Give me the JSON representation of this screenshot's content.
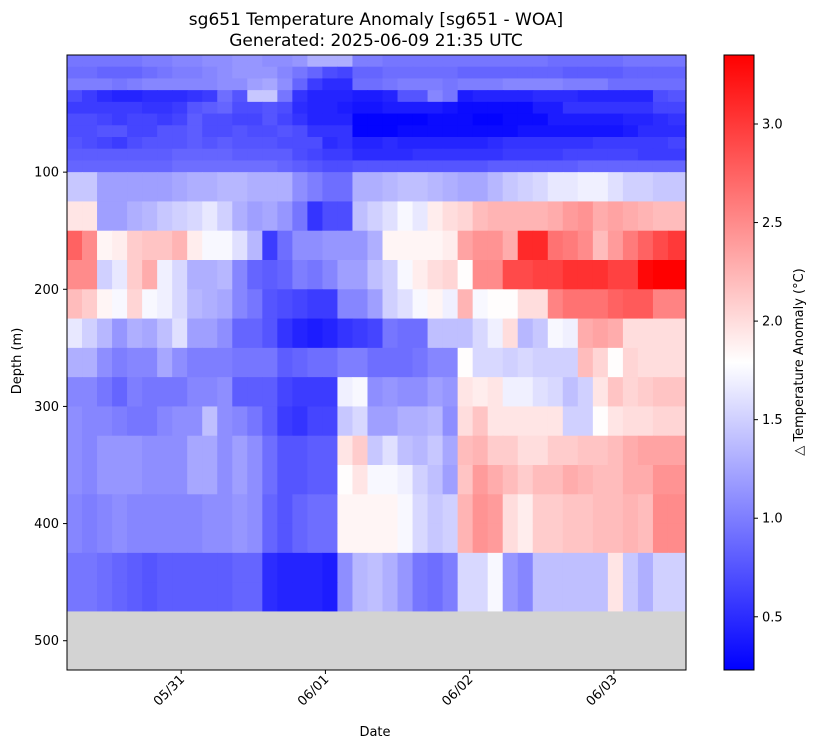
{
  "chart_data": {
    "type": "heatmap",
    "title": "sg651 Temperature Anomaly [sg651 - WOA]",
    "subtitle": "Generated: 2025-06-09 21:35 UTC",
    "xlabel": "Date",
    "ylabel": "Depth (m)",
    "colorbar_label": "△ Temperature Anomaly (°C)",
    "colormap": "bwr",
    "color_range": [
      0.23,
      3.35
    ],
    "colorbar_ticks": [
      0.5,
      1.0,
      1.5,
      2.0,
      2.5,
      3.0
    ],
    "colorbar_tick_labels": [
      "0.5",
      "1.0",
      "1.5",
      "2.0",
      "2.5",
      "3.0"
    ],
    "missing_color": "#d3d3d3",
    "x_tick_labels": [
      "05/31",
      "06/01",
      "06/02",
      "06/03"
    ],
    "x_tick_dates": [
      "2025-05-31",
      "2025-06-01",
      "2025-06-02",
      "2025-06-03"
    ],
    "xlim": [
      "2025-05-30 05:00",
      "2025-06-03 12:00"
    ],
    "ylim": [
      525,
      0
    ],
    "y_ticks": [
      100,
      200,
      300,
      400,
      500
    ],
    "y_tick_labels": [
      "100",
      "200",
      "300",
      "400",
      "500"
    ],
    "missing_depth_range": [
      475,
      525
    ],
    "depth_bins": [
      0,
      5,
      10,
      20,
      30,
      40,
      50,
      60,
      70,
      80,
      90,
      100,
      125,
      150,
      175,
      200,
      225,
      250,
      275,
      300,
      325,
      350,
      375,
      400,
      425,
      450,
      475
    ],
    "dive_times": [
      "2025-05-30 05:00",
      "2025-05-30 07:30",
      "2025-05-30 10:00",
      "2025-05-30 12:30",
      "2025-05-30 15:00",
      "2025-05-30 17:30",
      "2025-05-30 20:00",
      "2025-05-30 22:30",
      "2025-05-31 01:00",
      "2025-05-31 03:30",
      "2025-05-31 06:00",
      "2025-05-31 08:30",
      "2025-05-31 11:00",
      "2025-05-31 13:30",
      "2025-05-31 16:00",
      "2025-05-31 18:30",
      "2025-05-31 21:00",
      "2025-05-31 23:30",
      "2025-06-01 02:00",
      "2025-06-01 04:30",
      "2025-06-01 07:00",
      "2025-06-01 09:30",
      "2025-06-01 12:00",
      "2025-06-01 14:30",
      "2025-06-01 17:00",
      "2025-06-01 19:30",
      "2025-06-01 22:00",
      "2025-06-02 00:30",
      "2025-06-02 03:00",
      "2025-06-02 05:30",
      "2025-06-02 08:00",
      "2025-06-02 10:30",
      "2025-06-02 13:00",
      "2025-06-02 15:30",
      "2025-06-02 18:00",
      "2025-06-02 20:30",
      "2025-06-02 23:00",
      "2025-06-03 01:30",
      "2025-06-03 04:00",
      "2025-06-03 06:30",
      "2025-06-03 09:00",
      "2025-06-03 12:00"
    ],
    "anomaly": [
      [
        0.95,
        0.95,
        0.95,
        0.95,
        0.95,
        1.0,
        1.0,
        1.05,
        1.05,
        1.1,
        1.1,
        1.15,
        1.15,
        1.1,
        1.1,
        1.15,
        1.3,
        1.3,
        1.3,
        1.0,
        1.0,
        0.95,
        0.95,
        0.95,
        0.95,
        0.95,
        0.95,
        0.95,
        0.95,
        0.95,
        0.95,
        0.95,
        0.9,
        0.9,
        0.9,
        0.9,
        0.9,
        0.95,
        0.95,
        0.95,
        0.95
      ],
      [
        0.95,
        0.95,
        0.95,
        0.95,
        0.95,
        1.0,
        1.0,
        1.05,
        1.05,
        1.1,
        1.1,
        1.15,
        1.15,
        1.1,
        1.1,
        1.15,
        1.3,
        1.3,
        1.3,
        1.0,
        1.0,
        0.95,
        0.95,
        0.95,
        0.95,
        0.95,
        0.95,
        0.95,
        0.95,
        0.95,
        0.95,
        0.95,
        0.9,
        0.9,
        0.9,
        0.9,
        0.9,
        0.95,
        0.95,
        0.95,
        0.95
      ],
      [
        0.9,
        0.9,
        0.85,
        0.85,
        0.85,
        0.9,
        0.95,
        1.0,
        1.0,
        1.05,
        1.1,
        1.15,
        1.15,
        1.15,
        1.05,
        0.95,
        0.85,
        0.7,
        0.65,
        0.85,
        0.85,
        0.9,
        0.9,
        0.9,
        0.9,
        0.9,
        0.85,
        0.85,
        0.85,
        0.85,
        0.85,
        0.85,
        0.85,
        0.8,
        0.8,
        0.8,
        0.8,
        0.85,
        0.85,
        0.85,
        0.85
      ],
      [
        1.0,
        1.0,
        1.0,
        0.95,
        1.0,
        1.05,
        1.05,
        1.05,
        1.05,
        1.05,
        1.1,
        1.1,
        1.2,
        1.25,
        1.1,
        0.85,
        0.6,
        0.5,
        0.5,
        0.9,
        0.9,
        0.95,
        1.0,
        1.0,
        1.0,
        0.95,
        1.0,
        1.0,
        1.0,
        1.05,
        1.05,
        1.05,
        1.05,
        1.0,
        1.0,
        1.0,
        0.9,
        0.9,
        0.9,
        0.9,
        0.9
      ],
      [
        0.7,
        0.6,
        0.5,
        0.45,
        0.45,
        0.5,
        0.5,
        0.5,
        0.55,
        0.6,
        0.9,
        0.75,
        1.45,
        1.45,
        0.95,
        0.55,
        0.45,
        0.45,
        0.45,
        0.4,
        0.4,
        0.45,
        0.75,
        0.75,
        1.05,
        0.95,
        0.4,
        0.45,
        0.45,
        0.45,
        0.45,
        0.5,
        0.5,
        0.5,
        0.45,
        0.45,
        0.45,
        0.45,
        0.45,
        0.7,
        0.75
      ],
      [
        0.6,
        0.6,
        0.6,
        0.6,
        0.6,
        0.55,
        0.55,
        0.6,
        0.75,
        0.8,
        0.85,
        0.7,
        0.7,
        0.75,
        0.7,
        0.5,
        0.45,
        0.45,
        0.4,
        0.35,
        0.35,
        0.4,
        0.4,
        0.4,
        0.4,
        0.35,
        0.3,
        0.3,
        0.3,
        0.3,
        0.3,
        0.4,
        0.4,
        0.55,
        0.55,
        0.55,
        0.55,
        0.55,
        0.55,
        0.65,
        0.65
      ],
      [
        0.7,
        0.7,
        0.65,
        0.6,
        0.65,
        0.65,
        0.6,
        0.65,
        0.8,
        0.7,
        0.7,
        0.65,
        0.65,
        0.75,
        0.65,
        0.55,
        0.45,
        0.45,
        0.45,
        0.25,
        0.25,
        0.25,
        0.25,
        0.25,
        0.3,
        0.3,
        0.3,
        0.25,
        0.25,
        0.3,
        0.3,
        0.3,
        0.4,
        0.4,
        0.4,
        0.4,
        0.4,
        0.45,
        0.45,
        0.5,
        0.55
      ],
      [
        0.7,
        0.7,
        0.75,
        0.75,
        0.65,
        0.65,
        0.75,
        0.75,
        0.8,
        0.7,
        0.7,
        0.75,
        0.7,
        0.7,
        0.75,
        0.7,
        0.55,
        0.55,
        0.55,
        0.25,
        0.25,
        0.25,
        0.3,
        0.3,
        0.3,
        0.3,
        0.3,
        0.3,
        0.3,
        0.3,
        0.35,
        0.35,
        0.35,
        0.35,
        0.35,
        0.35,
        0.35,
        0.4,
        0.5,
        0.5,
        0.5
      ],
      [
        0.75,
        0.7,
        0.65,
        0.6,
        0.7,
        0.75,
        0.75,
        0.75,
        0.8,
        0.75,
        0.8,
        0.75,
        0.75,
        0.75,
        0.7,
        0.7,
        0.7,
        0.5,
        0.55,
        0.45,
        0.45,
        0.5,
        0.45,
        0.45,
        0.45,
        0.45,
        0.45,
        0.45,
        0.5,
        0.55,
        0.55,
        0.55,
        0.55,
        0.55,
        0.55,
        0.6,
        0.6,
        0.6,
        0.6,
        0.6,
        0.65
      ],
      [
        0.8,
        0.8,
        0.8,
        0.8,
        0.8,
        0.8,
        0.8,
        0.85,
        0.85,
        0.85,
        0.85,
        0.8,
        0.8,
        0.8,
        0.8,
        0.7,
        0.65,
        0.6,
        0.6,
        0.5,
        0.5,
        0.5,
        0.5,
        0.55,
        0.55,
        0.55,
        0.55,
        0.55,
        0.55,
        0.6,
        0.6,
        0.6,
        0.6,
        0.65,
        0.65,
        0.65,
        0.65,
        0.65,
        0.6,
        0.6,
        0.6
      ],
      [
        0.85,
        0.85,
        0.85,
        0.85,
        0.85,
        0.85,
        0.85,
        0.9,
        0.9,
        0.9,
        0.9,
        0.9,
        0.9,
        0.9,
        0.85,
        0.8,
        0.75,
        0.7,
        0.7,
        0.75,
        0.75,
        0.75,
        0.75,
        0.75,
        0.75,
        0.75,
        0.75,
        0.75,
        0.8,
        0.8,
        0.8,
        0.8,
        0.8,
        0.8,
        0.85,
        0.85,
        0.85,
        0.85,
        0.85,
        0.85,
        0.85
      ],
      [
        1.45,
        1.45,
        1.2,
        1.2,
        1.2,
        1.2,
        1.2,
        1.25,
        1.3,
        1.3,
        1.35,
        1.35,
        1.3,
        1.3,
        1.3,
        1.1,
        1.0,
        0.9,
        0.9,
        1.3,
        1.3,
        1.35,
        1.4,
        1.4,
        1.35,
        1.3,
        1.25,
        1.25,
        1.35,
        1.45,
        1.5,
        1.55,
        1.65,
        1.65,
        1.7,
        1.7,
        1.6,
        1.5,
        1.5,
        1.45,
        1.45
      ],
      [
        1.95,
        1.95,
        1.2,
        1.2,
        1.3,
        1.35,
        1.45,
        1.5,
        1.55,
        1.65,
        1.5,
        1.3,
        1.2,
        1.25,
        1.15,
        0.95,
        0.55,
        0.7,
        0.7,
        1.4,
        1.5,
        1.6,
        1.75,
        1.65,
        1.9,
        2.0,
        2.05,
        2.2,
        2.25,
        2.25,
        2.25,
        2.25,
        2.3,
        2.4,
        2.45,
        2.3,
        2.35,
        2.3,
        2.25,
        2.2,
        2.2
      ],
      [
        2.75,
        2.5,
        1.85,
        1.9,
        2.1,
        2.15,
        2.15,
        2.25,
        1.9,
        1.75,
        1.75,
        1.6,
        1.35,
        0.6,
        0.9,
        1.1,
        1.1,
        1.15,
        1.15,
        1.15,
        1.3,
        1.85,
        1.85,
        1.85,
        1.85,
        1.9,
        2.35,
        2.45,
        2.45,
        2.3,
        3.1,
        3.1,
        2.65,
        2.6,
        2.5,
        2.2,
        2.4,
        2.6,
        2.75,
        2.9,
        3.0
      ],
      [
        2.5,
        2.5,
        1.5,
        1.65,
        2.1,
        2.3,
        1.7,
        1.55,
        1.3,
        1.3,
        1.35,
        1.05,
        0.85,
        0.8,
        0.85,
        1.0,
        0.95,
        1.05,
        1.2,
        1.2,
        1.4,
        1.5,
        1.75,
        1.9,
        2.0,
        2.05,
        1.8,
        2.5,
        2.5,
        2.9,
        2.9,
        2.95,
        2.95,
        3.05,
        3.05,
        3.05,
        2.95,
        2.95,
        3.3,
        3.35,
        3.35
      ],
      [
        2.2,
        2.1,
        1.85,
        1.75,
        2.05,
        1.75,
        1.7,
        1.55,
        1.35,
        1.3,
        1.25,
        1.05,
        0.95,
        0.75,
        0.7,
        0.65,
        0.6,
        0.6,
        1.05,
        1.05,
        1.2,
        1.5,
        1.6,
        1.75,
        1.85,
        1.7,
        2.25,
        1.75,
        1.8,
        1.8,
        2.0,
        2.0,
        2.55,
        2.65,
        2.65,
        2.65,
        2.75,
        2.8,
        2.8,
        2.55,
        2.55
      ],
      [
        1.65,
        1.5,
        1.35,
        1.15,
        1.3,
        1.25,
        1.4,
        1.6,
        1.2,
        1.2,
        1.1,
        0.85,
        0.85,
        0.75,
        0.55,
        0.45,
        0.4,
        0.45,
        0.55,
        0.6,
        0.65,
        0.95,
        0.9,
        0.9,
        1.4,
        1.4,
        1.4,
        1.55,
        1.7,
        2.0,
        1.35,
        1.45,
        1.75,
        1.7,
        2.3,
        2.35,
        2.3,
        2.0,
        2.0,
        2.0,
        2.0
      ],
      [
        1.3,
        1.3,
        1.1,
        1.0,
        1.05,
        1.05,
        1.25,
        1.1,
        1.0,
        1.0,
        1.0,
        0.95,
        0.95,
        0.95,
        0.8,
        0.85,
        0.9,
        0.9,
        1.0,
        1.0,
        0.9,
        0.9,
        0.9,
        0.95,
        1.05,
        1.05,
        1.8,
        1.55,
        1.55,
        1.5,
        1.55,
        1.5,
        1.5,
        1.5,
        2.2,
        2.05,
        1.8,
        2.05,
        2.0,
        2.0,
        2.0
      ],
      [
        1.05,
        1.05,
        0.95,
        0.85,
        1.0,
        0.95,
        0.95,
        0.95,
        1.05,
        1.05,
        1.1,
        0.8,
        0.8,
        0.8,
        0.65,
        0.6,
        0.6,
        0.6,
        1.7,
        1.75,
        1.1,
        1.15,
        1.1,
        1.1,
        1.2,
        1.15,
        1.95,
        1.9,
        1.95,
        1.7,
        1.7,
        1.6,
        1.55,
        1.4,
        1.5,
        1.95,
        2.15,
        2.05,
        2.1,
        2.15,
        2.15
      ],
      [
        1.1,
        1.05,
        1.05,
        1.0,
        0.95,
        0.95,
        1.05,
        1.1,
        1.1,
        1.4,
        1.1,
        1.05,
        0.95,
        0.8,
        0.6,
        0.55,
        0.65,
        0.65,
        1.45,
        1.55,
        1.2,
        1.2,
        1.3,
        1.3,
        1.35,
        1.1,
        2.0,
        2.15,
        1.95,
        1.95,
        1.95,
        1.95,
        1.95,
        1.5,
        1.5,
        1.8,
        1.95,
        2.0,
        2.0,
        2.05,
        2.05
      ],
      [
        1.1,
        1.05,
        1.15,
        1.15,
        1.15,
        1.1,
        1.1,
        1.1,
        1.25,
        1.25,
        1.1,
        1.2,
        1.1,
        0.9,
        0.75,
        0.75,
        0.8,
        0.8,
        1.95,
        2.1,
        1.45,
        1.6,
        1.4,
        1.35,
        1.45,
        1.25,
        2.2,
        2.25,
        2.1,
        2.1,
        2.0,
        2.0,
        2.1,
        2.1,
        2.15,
        2.15,
        2.2,
        2.3,
        2.35,
        2.35,
        2.35
      ],
      [
        1.1,
        1.05,
        1.15,
        1.15,
        1.15,
        1.1,
        1.1,
        1.1,
        1.25,
        1.25,
        1.1,
        1.2,
        1.1,
        0.9,
        0.75,
        0.75,
        0.8,
        0.8,
        1.8,
        1.95,
        1.75,
        1.75,
        1.7,
        1.5,
        1.4,
        1.2,
        2.15,
        2.4,
        2.3,
        2.2,
        2.1,
        2.2,
        2.2,
        2.3,
        2.25,
        2.2,
        2.2,
        2.3,
        2.3,
        2.45,
        2.45
      ],
      [
        1.05,
        1.0,
        1.05,
        1.1,
        1.05,
        1.05,
        1.05,
        1.05,
        1.05,
        1.1,
        1.1,
        1.15,
        1.1,
        0.85,
        0.75,
        0.85,
        0.9,
        0.9,
        1.85,
        1.85,
        1.85,
        1.85,
        1.75,
        1.55,
        1.45,
        1.5,
        2.25,
        2.45,
        2.4,
        2.0,
        1.9,
        2.1,
        2.1,
        2.15,
        2.15,
        2.2,
        2.2,
        2.25,
        2.2,
        2.5,
        2.5
      ],
      [
        1.05,
        1.0,
        1.05,
        1.1,
        1.05,
        1.05,
        1.05,
        1.05,
        1.05,
        1.1,
        1.1,
        1.15,
        1.1,
        0.85,
        0.75,
        0.85,
        0.9,
        0.9,
        1.85,
        1.85,
        1.85,
        1.85,
        1.75,
        1.55,
        1.45,
        1.5,
        2.25,
        2.45,
        2.4,
        2.0,
        1.9,
        2.1,
        2.1,
        2.15,
        2.15,
        2.2,
        2.2,
        2.25,
        2.2,
        2.5,
        2.5
      ],
      [
        0.95,
        0.95,
        0.9,
        0.85,
        0.8,
        0.75,
        0.8,
        0.8,
        0.8,
        0.8,
        0.8,
        0.85,
        0.85,
        0.5,
        0.45,
        0.45,
        0.45,
        0.4,
        1.1,
        1.35,
        1.4,
        1.3,
        1.15,
        0.95,
        0.9,
        1.0,
        1.55,
        1.55,
        1.75,
        1.15,
        1.05,
        1.4,
        1.4,
        1.4,
        1.4,
        1.4,
        1.95,
        1.45,
        1.3,
        1.5,
        1.5
      ],
      [
        0.95,
        0.95,
        0.9,
        0.85,
        0.8,
        0.75,
        0.8,
        0.8,
        0.8,
        0.8,
        0.8,
        0.85,
        0.85,
        0.5,
        0.45,
        0.45,
        0.45,
        0.4,
        1.1,
        1.35,
        1.4,
        1.3,
        1.15,
        0.95,
        0.9,
        1.0,
        1.55,
        1.55,
        1.75,
        1.15,
        1.05,
        1.4,
        1.4,
        1.4,
        1.4,
        1.4,
        1.95,
        1.45,
        1.3,
        1.5,
        1.5
      ]
    ]
  }
}
